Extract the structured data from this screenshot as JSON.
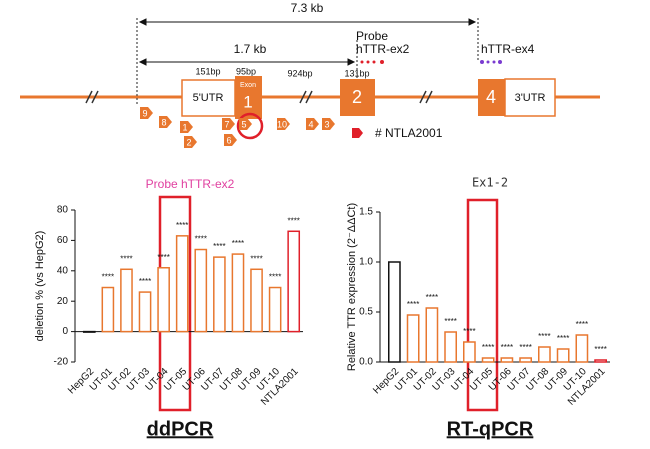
{
  "diagram": {
    "total_length": "7.3 kb",
    "partial_length": "1.7 kb",
    "probe_label": "Probe",
    "probe_ex2": "hTTR-ex2",
    "probe_ex4": "hTTR-ex4",
    "sizes": [
      "151bp",
      "95bp",
      "924bp",
      "131bp"
    ],
    "utr5": "5'UTR",
    "exon_word": "Exon",
    "exons": [
      "1",
      "2",
      "4"
    ],
    "utr3": "3'UTR",
    "guides": [
      "9",
      "8",
      "1",
      "2",
      "7",
      "6",
      "5",
      "10",
      "4",
      "3"
    ],
    "ntla_label": "# NTLA2001"
  },
  "chart_data": [
    {
      "type": "bar",
      "title": "Probe hTTR-ex2",
      "y_label": "deletion % (vs HepG2)",
      "caption": "ddPCR",
      "categories": [
        "HepG2",
        "UT-01",
        "UT-02",
        "UT-03",
        "UT-04",
        "UT-05",
        "UT-06",
        "UT-07",
        "UT-08",
        "UT-09",
        "UT-10",
        "NTLA2001"
      ],
      "values": [
        0,
        29,
        41,
        26,
        42,
        63,
        54,
        49,
        51,
        41,
        29,
        66
      ],
      "colors": [
        "#111111",
        "#e8772e",
        "#e8772e",
        "#e8772e",
        "#e8772e",
        "#e8772e",
        "#e8772e",
        "#e8772e",
        "#e8772e",
        "#e8772e",
        "#e8772e",
        "#e0202a"
      ],
      "sig_labels": [
        null,
        "****",
        "****",
        "****",
        "****",
        "****",
        "****",
        "****",
        "****",
        "****",
        "****",
        "****"
      ],
      "ylim": [
        -20,
        80
      ],
      "yticks": [
        -20,
        0,
        20,
        40,
        60,
        80
      ]
    },
    {
      "type": "bar",
      "title": "Ex1-2",
      "y_label": "Relative TTR expression (2⁻ΔΔCt)",
      "caption": "RT-qPCR",
      "categories": [
        "HepG2",
        "UT-01",
        "UT-02",
        "UT-03",
        "UT-04",
        "UT-05",
        "UT-06",
        "UT-07",
        "UT-08",
        "UT-09",
        "UT-10",
        "NTLA2001"
      ],
      "values": [
        1.0,
        0.47,
        0.54,
        0.3,
        0.2,
        0.04,
        0.04,
        0.04,
        0.15,
        0.13,
        0.27,
        0.02
      ],
      "colors": [
        "#111111",
        "#e8772e",
        "#e8772e",
        "#e8772e",
        "#e8772e",
        "#e8772e",
        "#e8772e",
        "#e8772e",
        "#e8772e",
        "#e8772e",
        "#e8772e",
        "#e0202a"
      ],
      "sig_labels": [
        null,
        "****",
        "****",
        "****",
        "****",
        "****",
        "****",
        "****",
        "****",
        "****",
        "****",
        "****"
      ],
      "ylim": [
        0,
        1.5
      ],
      "yticks": [
        {
          "value": 0,
          "label": "0.0"
        },
        0.5,
        {
          "value": 1,
          "label": "1.0"
        },
        1.5
      ]
    }
  ]
}
